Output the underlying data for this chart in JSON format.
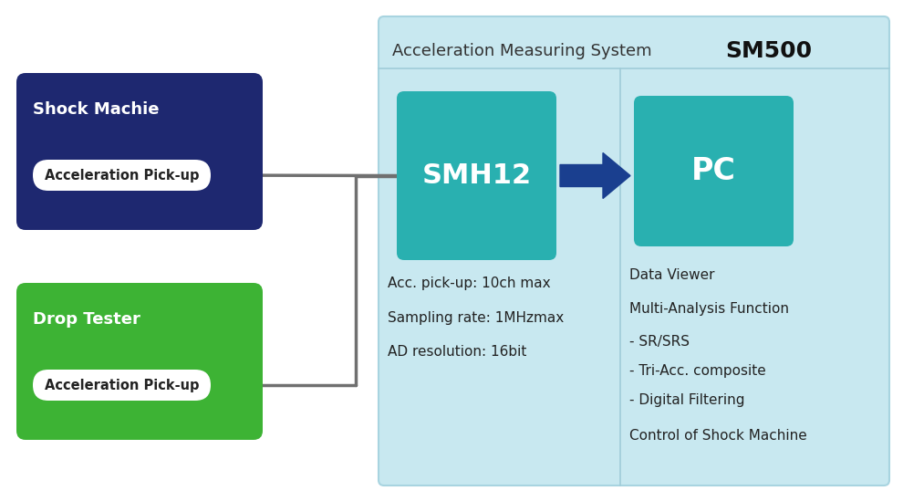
{
  "bg_color": "#ffffff",
  "light_blue_bg": "#c8e8f0",
  "teal_color": "#29b0b0",
  "dark_blue_color": "#1e2870",
  "green_color": "#3db334",
  "arrow_blue": "#1a3f8f",
  "line_color": "#707070",
  "white_color": "#ffffff",
  "title_system": "Acceleration Measuring System",
  "title_sm500": "SM500",
  "shock_title": "Shock Machie",
  "shock_pickup": "Acceleration Pick-up",
  "drop_title": "Drop Tester",
  "drop_pickup": "Acceleration Pick-up",
  "smh12_label": "SMH12",
  "pc_label": "PC",
  "specs": [
    "Acc. pick-up: 10ch max",
    "Sampling rate: 1MHzmax",
    "AD resolution: 16bit"
  ],
  "pc_specs": [
    "Data Viewer",
    "Multi-Analysis Function",
    "- SR/SRS",
    "- Tri-Acc. composite",
    "- Digital Filtering",
    "Control of Shock Machine"
  ],
  "figsize": [
    9.9,
    5.49
  ],
  "dpi": 100
}
